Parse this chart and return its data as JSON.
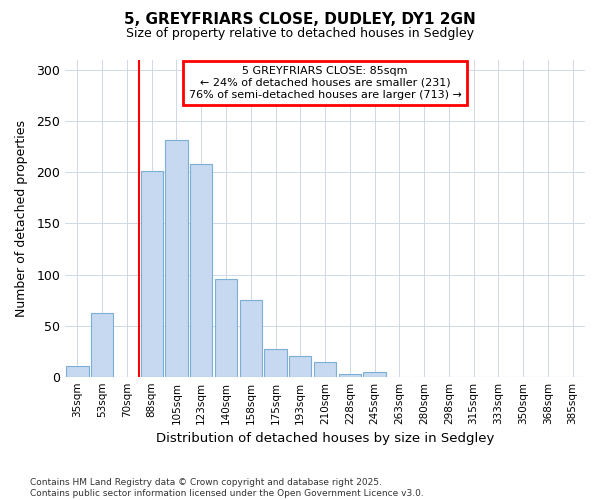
{
  "title": "5, GREYFRIARS CLOSE, DUDLEY, DY1 2GN",
  "subtitle": "Size of property relative to detached houses in Sedgley",
  "xlabel": "Distribution of detached houses by size in Sedgley",
  "ylabel": "Number of detached properties",
  "categories": [
    "35sqm",
    "53sqm",
    "70sqm",
    "88sqm",
    "105sqm",
    "123sqm",
    "140sqm",
    "158sqm",
    "175sqm",
    "193sqm",
    "210sqm",
    "228sqm",
    "245sqm",
    "263sqm",
    "280sqm",
    "298sqm",
    "315sqm",
    "333sqm",
    "350sqm",
    "368sqm",
    "385sqm"
  ],
  "values": [
    10,
    62,
    0,
    201,
    232,
    208,
    96,
    75,
    27,
    20,
    14,
    3,
    5,
    0,
    0,
    0,
    0,
    0,
    0,
    0,
    0
  ],
  "bar_color": "#c6d9f0",
  "bar_edgecolor": "#7bafd4",
  "grid_color": "#d0d8e8",
  "redline_x": 2.5,
  "annotation_title": "5 GREYFRIARS CLOSE: 85sqm",
  "annotation_line1": "← 24% of detached houses are smaller (231)",
  "annotation_line2": "76% of semi-detached houses are larger (713) →",
  "footer_line1": "Contains HM Land Registry data © Crown copyright and database right 2025.",
  "footer_line2": "Contains public sector information licensed under the Open Government Licence v3.0.",
  "ylim": [
    0,
    310
  ],
  "background_color": "#ffffff",
  "title_fontsize": 11,
  "subtitle_fontsize": 9
}
